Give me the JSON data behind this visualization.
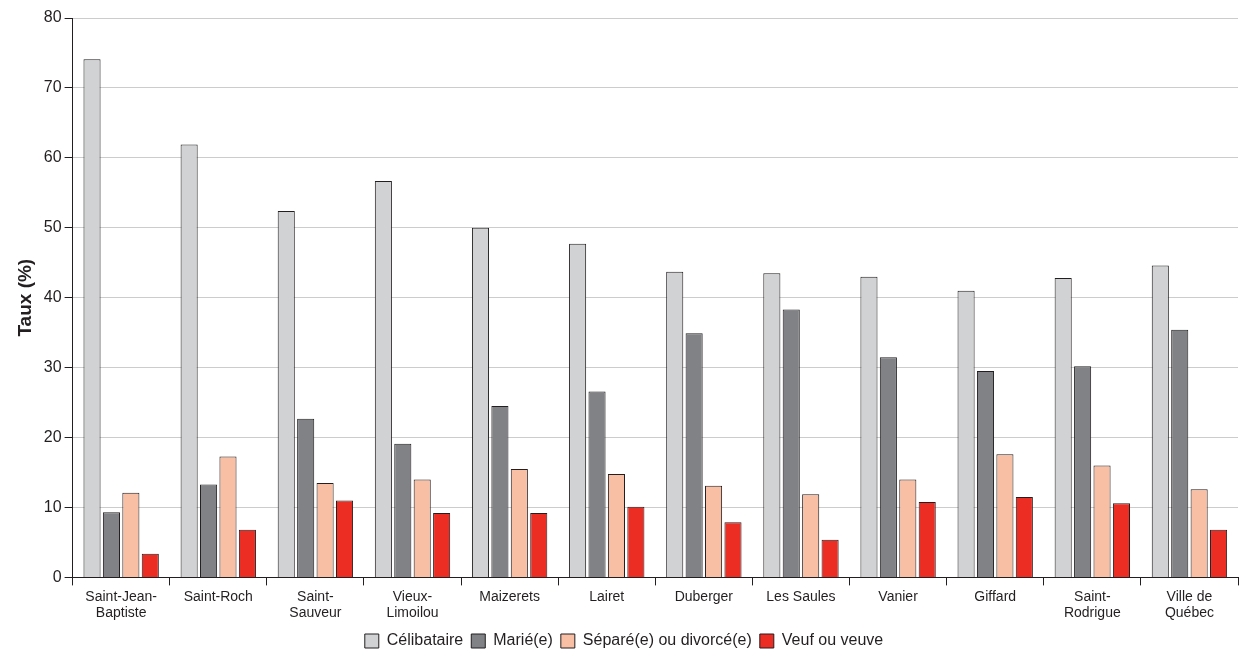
{
  "chart_data": {
    "type": "bar",
    "ylabel": "Taux (%)",
    "categories": [
      "Saint-Jean-Baptiste",
      "Saint-Roch",
      "Saint-Sauveur",
      "Vieux-Limoilou",
      "Maizerets",
      "Lairet",
      "Duberger",
      "Les Saules",
      "Vanier",
      "Giffard",
      "Saint-Rodrigue",
      "Ville de Québec"
    ],
    "series": [
      {
        "name": "Célibataire",
        "color": "#d1d2d4",
        "values": [
          74.1,
          61.9,
          52.4,
          56.7,
          50.0,
          47.7,
          43.7,
          43.5,
          43.0,
          41.0,
          42.8,
          44.6
        ]
      },
      {
        "name": "Marié(e)",
        "color": "#808285",
        "values": [
          9.3,
          13.3,
          22.7,
          19.1,
          24.5,
          26.6,
          34.9,
          38.3,
          31.5,
          29.5,
          30.2,
          35.4
        ]
      },
      {
        "name": "Séparé(e) ou divorcé(e)",
        "color": "#f9bfa5",
        "values": [
          12.1,
          17.3,
          13.5,
          14.0,
          15.5,
          14.8,
          13.1,
          11.9,
          14.0,
          17.6,
          16.0,
          12.6
        ]
      },
      {
        "name": "Veuf ou veuve",
        "color": "#ec2d24",
        "values": [
          3.4,
          6.8,
          11.0,
          9.2,
          9.2,
          10.1,
          7.9,
          5.4,
          10.8,
          11.5,
          10.6,
          6.8
        ]
      }
    ],
    "ylim": [
      0,
      80
    ],
    "yticks": [
      0,
      10,
      20,
      30,
      40,
      50,
      60,
      70,
      80
    ],
    "grid": "y",
    "legend": "bottom"
  }
}
